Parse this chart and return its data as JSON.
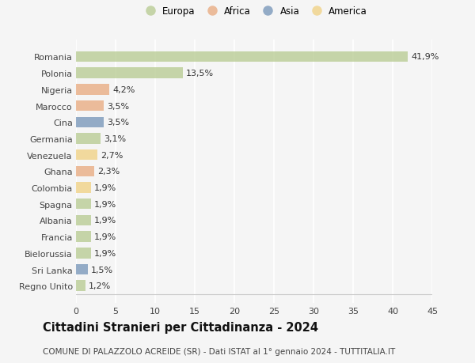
{
  "title": "Cittadini Stranieri per Cittadinanza - 2024",
  "subtitle": "COMUNE DI PALAZZOLO ACREIDE (SR) - Dati ISTAT al 1° gennaio 2024 - TUTTITALIA.IT",
  "categories": [
    "Romania",
    "Polonia",
    "Nigeria",
    "Marocco",
    "Cina",
    "Germania",
    "Venezuela",
    "Ghana",
    "Colombia",
    "Spagna",
    "Albania",
    "Francia",
    "Bielorussia",
    "Sri Lanka",
    "Regno Unito"
  ],
  "values": [
    41.9,
    13.5,
    4.2,
    3.5,
    3.5,
    3.1,
    2.7,
    2.3,
    1.9,
    1.9,
    1.9,
    1.9,
    1.9,
    1.5,
    1.2
  ],
  "labels": [
    "41,9%",
    "13,5%",
    "4,2%",
    "3,5%",
    "3,5%",
    "3,1%",
    "2,7%",
    "2,3%",
    "1,9%",
    "1,9%",
    "1,9%",
    "1,9%",
    "1,9%",
    "1,5%",
    "1,2%"
  ],
  "colors": [
    "#b5c98e",
    "#b5c98e",
    "#e8a87c",
    "#e8a87c",
    "#7392b7",
    "#b5c98e",
    "#f0d080",
    "#e8a87c",
    "#f0d080",
    "#b5c98e",
    "#b5c98e",
    "#b5c98e",
    "#b5c98e",
    "#7392b7",
    "#b5c98e"
  ],
  "legend": [
    {
      "label": "Europa",
      "color": "#b5c98e"
    },
    {
      "label": "Africa",
      "color": "#e8a87c"
    },
    {
      "label": "Asia",
      "color": "#7392b7"
    },
    {
      "label": "America",
      "color": "#f0d080"
    }
  ],
  "xlim": [
    0,
    45
  ],
  "xticks": [
    0,
    5,
    10,
    15,
    20,
    25,
    30,
    35,
    40,
    45
  ],
  "background_color": "#f5f5f5",
  "grid_color": "#ffffff",
  "bar_height": 0.65,
  "label_fontsize": 8,
  "tick_fontsize": 8,
  "title_fontsize": 10.5,
  "subtitle_fontsize": 7.5,
  "alpha": 0.75
}
